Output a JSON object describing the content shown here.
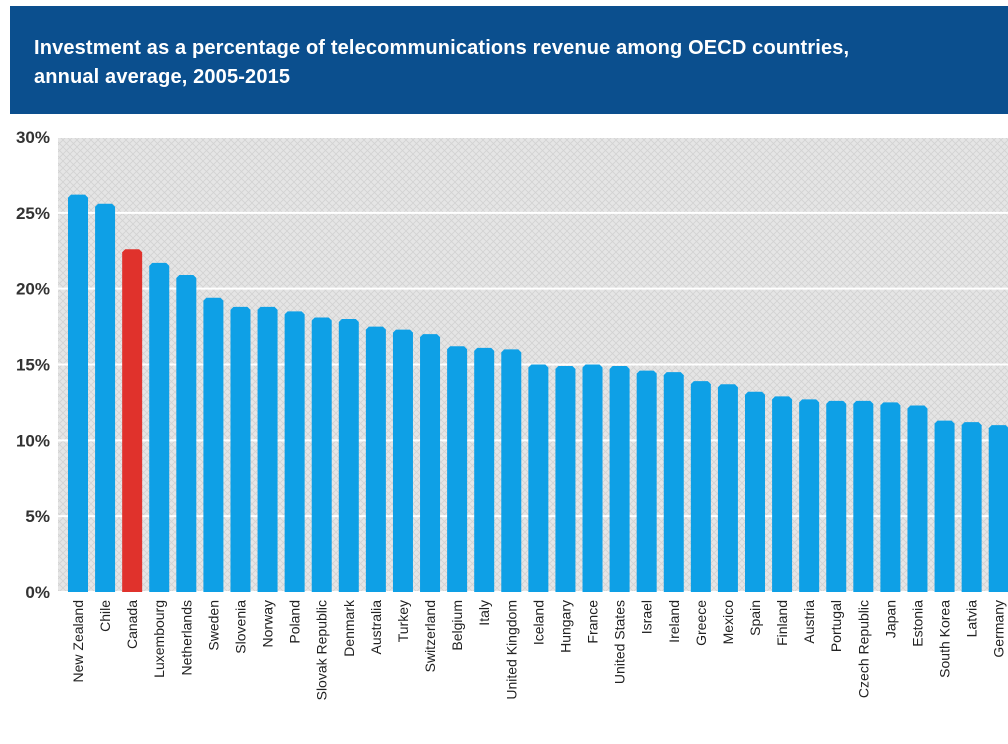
{
  "header": {
    "title_line1": "Investment as a percentage of telecommunications revenue among OECD countries,",
    "title_line2": "annual average, 2005-2015"
  },
  "colors": {
    "header_bg": "#0b4f8e",
    "bar": "#0ea0e6",
    "highlight_bar": "#e0322c",
    "plot_bg": "#e3e3e3",
    "gridline": "#ffffff"
  },
  "chart_data": {
    "type": "bar",
    "title": "Investment as a percentage of telecommunications revenue among OECD countries, annual average, 2005-2015",
    "xlabel": "",
    "ylabel": "",
    "ylim": [
      0,
      30
    ],
    "grid": true,
    "y_ticks": [
      "0%",
      "5%",
      "10%",
      "15%",
      "20%",
      "25%",
      "30%"
    ],
    "categories": [
      "New Zealand",
      "Chile",
      "Canada",
      "Luxembourg",
      "Netherlands",
      "Sweden",
      "Slovenia",
      "Norway",
      "Poland",
      "Slovak Republic",
      "Denmark",
      "Australia",
      "Turkey",
      "Switzerland",
      "Belgium",
      "Italy",
      "United Kingdom",
      "Iceland",
      "Hungary",
      "France",
      "United States",
      "Israel",
      "Ireland",
      "Greece",
      "Mexico",
      "Spain",
      "Finland",
      "Austria",
      "Portugal",
      "Czech Republic",
      "Japan",
      "Estonia",
      "South Korea",
      "Latvia",
      "Germany"
    ],
    "values": [
      26.2,
      25.6,
      22.6,
      21.7,
      20.9,
      19.4,
      18.8,
      18.8,
      18.5,
      18.1,
      18.0,
      17.5,
      17.3,
      17.0,
      16.2,
      16.1,
      16.0,
      15.0,
      14.9,
      15.0,
      14.9,
      14.6,
      14.5,
      13.9,
      13.7,
      13.2,
      12.9,
      12.7,
      12.6,
      12.6,
      12.5,
      12.3,
      11.3,
      11.2,
      11.0
    ],
    "highlight": "Canada"
  }
}
